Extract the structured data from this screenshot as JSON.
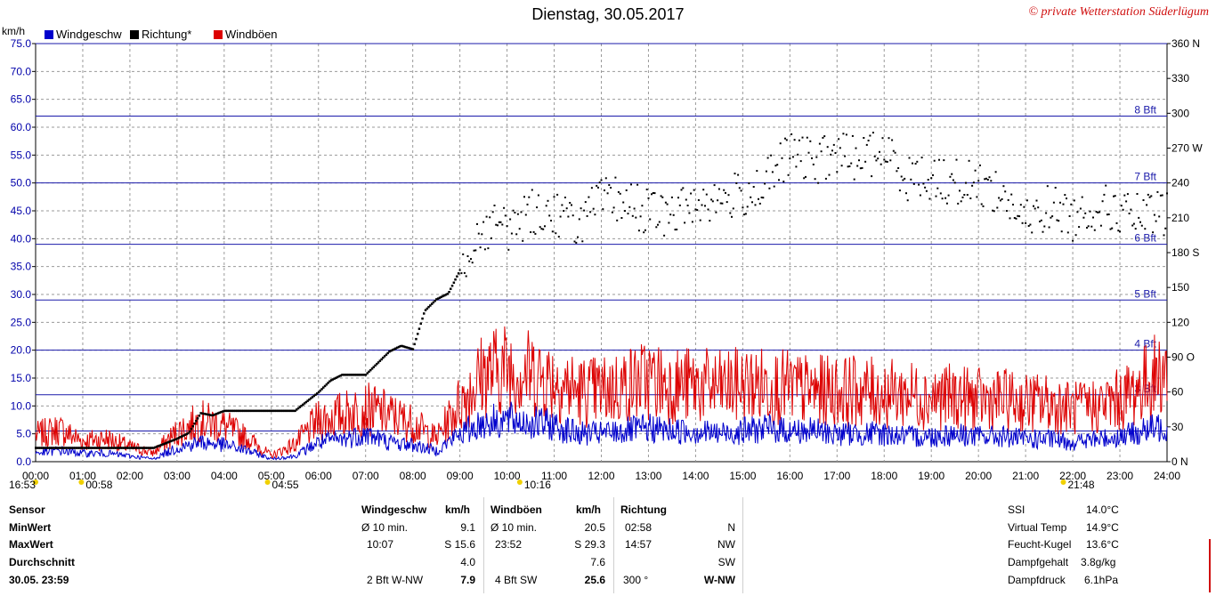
{
  "title": "Dienstag, 30.05.2017",
  "copyright": "© private Wetterstation Süderlügum",
  "unit_left": "km/h",
  "legend": [
    {
      "label": "Windgeschw",
      "color": "#0000cc"
    },
    {
      "label": "Richtung*",
      "color": "#000000"
    },
    {
      "label": "Windböen",
      "color": "#dd0000"
    }
  ],
  "markers": [
    {
      "label": "16:53",
      "time": 0.0
    },
    {
      "label": "00:58",
      "time": 0.97
    },
    {
      "label": "04:55",
      "time": 4.92
    },
    {
      "label": "10:16",
      "time": 10.27
    },
    {
      "label": "21:48",
      "time": 21.8
    }
  ],
  "chart_data": {
    "type": "line",
    "title": "Dienstag, 30.05.2017",
    "xlabel": "",
    "ylabel": "km/h",
    "xlim": [
      "00:00",
      "24:00"
    ],
    "ylim": [
      0,
      75
    ],
    "y2lim": [
      0,
      360
    ],
    "x_ticks": [
      "00:00",
      "01:00",
      "02:00",
      "03:00",
      "04:00",
      "05:00",
      "06:00",
      "07:00",
      "08:00",
      "09:00",
      "10:00",
      "11:00",
      "12:00",
      "13:00",
      "14:00",
      "15:00",
      "16:00",
      "17:00",
      "18:00",
      "19:00",
      "20:00",
      "21:00",
      "22:00",
      "23:00",
      "24:00"
    ],
    "y_ticks": [
      "0.0",
      "5.0",
      "10.0",
      "15.0",
      "20.0",
      "25.0",
      "30.0",
      "35.0",
      "40.0",
      "45.0",
      "50.0",
      "55.0",
      "60.0",
      "65.0",
      "70.0",
      "75.0"
    ],
    "y2_ticks": [
      {
        "value": 0,
        "label": "0 N"
      },
      {
        "value": 30,
        "label": "30"
      },
      {
        "value": 60,
        "label": "60"
      },
      {
        "value": 90,
        "label": "90 O"
      },
      {
        "value": 120,
        "label": "120"
      },
      {
        "value": 150,
        "label": "150"
      },
      {
        "value": 180,
        "label": "180 S"
      },
      {
        "value": 210,
        "label": "210"
      },
      {
        "value": 240,
        "label": "240"
      },
      {
        "value": 270,
        "label": "270 W"
      },
      {
        "value": 300,
        "label": "300"
      },
      {
        "value": 330,
        "label": "330"
      },
      {
        "value": 360,
        "label": "360 N"
      }
    ],
    "beaufort_lines": [
      {
        "label": "3 Bft",
        "value": 12.0
      },
      {
        "label": "4 Bft",
        "value": 20.0
      },
      {
        "label": "5 Bft",
        "value": 29.0
      },
      {
        "label": "6 Bft",
        "value": 39.0
      },
      {
        "label": "7 Bft",
        "value": 50.0
      },
      {
        "label": "8 Bft",
        "value": 62.0
      }
    ],
    "extra_lines": [
      5.5,
      75.0
    ],
    "grid": true,
    "series": [
      {
        "name": "Windgeschw",
        "axis": "left",
        "color": "#0000cc",
        "x": [
          0,
          0.5,
          1,
          1.5,
          2,
          2.5,
          3,
          3.5,
          4,
          4.5,
          5,
          5.5,
          6,
          6.5,
          7,
          7.5,
          8,
          8.5,
          9,
          9.5,
          10,
          10.5,
          11,
          11.5,
          12,
          12.5,
          13,
          13.5,
          14,
          14.5,
          15,
          15.5,
          16,
          16.5,
          17,
          17.5,
          18,
          18.5,
          19,
          19.5,
          20,
          20.5,
          21,
          21.5,
          22,
          22.5,
          23,
          23.5,
          24
        ],
        "y": [
          1.5,
          2.0,
          1.5,
          1.5,
          1.0,
          0.5,
          2.5,
          3.5,
          3.0,
          2.0,
          0.5,
          1.0,
          3.5,
          4.0,
          5.0,
          3.5,
          3.0,
          2.0,
          5.0,
          7.0,
          7.5,
          7.0,
          6.5,
          5.0,
          5.0,
          5.5,
          6.0,
          5.5,
          5.5,
          5.0,
          5.5,
          6.0,
          5.5,
          5.5,
          5.0,
          5.0,
          5.0,
          4.5,
          4.5,
          5.0,
          4.5,
          4.5,
          4.0,
          4.0,
          3.5,
          4.0,
          4.5,
          5.5,
          6.5
        ]
      },
      {
        "name": "Windböen",
        "axis": "left",
        "color": "#dd0000",
        "x": [
          0,
          0.5,
          1,
          1.5,
          2,
          2.5,
          3,
          3.5,
          4,
          4.5,
          5,
          5.5,
          6,
          6.5,
          7,
          7.5,
          8,
          8.5,
          9,
          9.5,
          10,
          10.5,
          11,
          11.5,
          12,
          12.5,
          13,
          13.5,
          14,
          14.5,
          15,
          15.5,
          16,
          16.5,
          17,
          17.5,
          18,
          18.5,
          19,
          19.5,
          20,
          20.5,
          21,
          21.5,
          22,
          22.5,
          23,
          23.5,
          24
        ],
        "y": [
          4.5,
          5.5,
          3.5,
          4.0,
          2.5,
          1.5,
          5.0,
          7.0,
          6.0,
          4.0,
          1.0,
          3.0,
          7.0,
          8.0,
          9.0,
          8.0,
          6.5,
          4.0,
          10.0,
          15.0,
          16.0,
          15.0,
          14.0,
          12.0,
          12.0,
          13.0,
          14.0,
          13.0,
          13.0,
          12.5,
          13.0,
          13.0,
          12.5,
          12.0,
          12.0,
          12.0,
          11.5,
          11.5,
          11.0,
          11.0,
          10.5,
          10.5,
          10.0,
          10.0,
          9.0,
          9.5,
          10.5,
          13.0,
          16.0
        ]
      },
      {
        "name": "Richtung*",
        "axis": "right",
        "type": "scatter",
        "color": "#000000",
        "x": [
          0,
          0.5,
          1,
          1.5,
          2,
          2.5,
          3,
          3.25,
          3.5,
          3.75,
          4,
          4.5,
          5,
          5.5,
          6,
          6.25,
          6.5,
          6.75,
          7,
          7.25,
          7.5,
          7.75,
          8,
          8.25,
          8.5,
          8.75,
          9,
          9.25,
          9.5,
          9.75,
          10,
          10.5,
          11,
          11.5,
          12,
          12.5,
          13,
          13.5,
          14,
          14.5,
          15,
          15.5,
          16,
          16.5,
          17,
          17.5,
          18,
          18.5,
          19,
          19.5,
          20,
          20.5,
          21,
          21.5,
          22,
          22.5,
          23,
          23.5,
          24
        ],
        "y": [
          12,
          12,
          12,
          12,
          12,
          12,
          20,
          25,
          42,
          40,
          44,
          44,
          44,
          44,
          60,
          70,
          75,
          75,
          75,
          85,
          95,
          100,
          97,
          130,
          140,
          145,
          165,
          185,
          200,
          205,
          200,
          215,
          215,
          205,
          225,
          225,
          215,
          212,
          225,
          225,
          230,
          240,
          265,
          258,
          265,
          262,
          268,
          245,
          245,
          240,
          240,
          230,
          205,
          220,
          210,
          220,
          215,
          210,
          215
        ]
      }
    ]
  },
  "stats": {
    "sensor": {
      "label": "Sensor",
      "min": "MinWert",
      "max": "MaxWert",
      "avg": "Durchschnitt",
      "date": "30.05. 23:59"
    },
    "wind": {
      "header": "Windgeschw",
      "unit": "km/h",
      "min_label": "Ø 10 min.",
      "min_val": "9.1",
      "max_time": "10:07",
      "max_val": "S 15.6",
      "avg": "4.0",
      "cur_label": "2 Bft W-NW",
      "cur_val": "7.9"
    },
    "gust": {
      "header": "Windböen",
      "unit": "km/h",
      "min_label": "Ø 10 min.",
      "min_val": "20.5",
      "max_time": "23:52",
      "max_val": "S 29.3",
      "avg": "7.6",
      "cur_label": "4 Bft SW",
      "cur_val": "25.6"
    },
    "dir": {
      "header": "Richtung",
      "min_time": "02:58",
      "min_val": "N",
      "max_time": "14:57",
      "max_val": "NW",
      "avg": "SW",
      "cur_label": "300 °",
      "cur_val": "W-NW"
    },
    "extra": [
      {
        "label": "SSI",
        "value": "14.0°C"
      },
      {
        "label": "Virtual Temp",
        "value": "14.9°C"
      },
      {
        "label": "Feucht-Kugel",
        "value": "13.6°C"
      },
      {
        "label": "Dampfgehalt",
        "value": "3.8g/kg"
      },
      {
        "label": "Dampfdruck",
        "value": "6.1hPa"
      }
    ]
  }
}
